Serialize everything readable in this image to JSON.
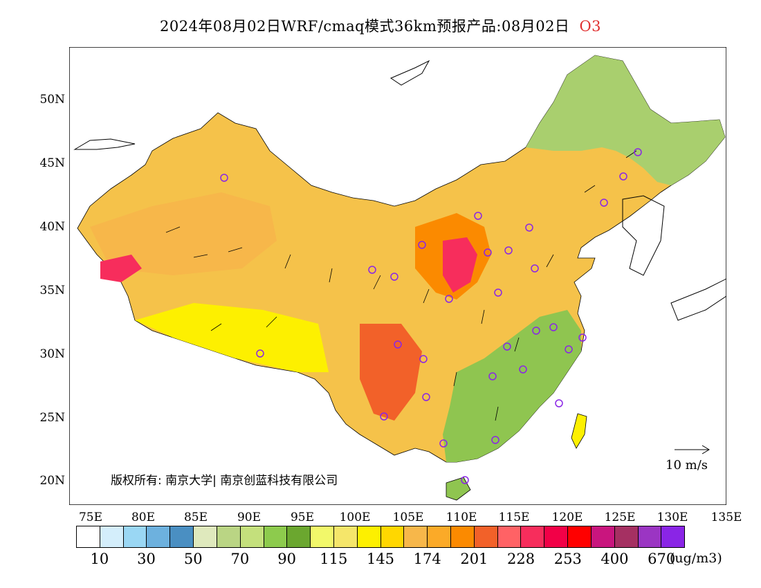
{
  "title": {
    "text": "2024年08月02日WRF/cmaq模式36km预报产品:08月02日",
    "species": "O3"
  },
  "map": {
    "lat_labels": [
      "50N",
      "45N",
      "40N",
      "35N",
      "30N",
      "25N",
      "20N"
    ],
    "lon_labels": [
      "75E",
      "80E",
      "85E",
      "90E",
      "95E",
      "100E",
      "105E",
      "110E",
      "115E",
      "120E",
      "125E",
      "130E",
      "135E"
    ],
    "copyright": "版权所有: 南京大学| 南京创蓝科技有限公司",
    "wind_reference": "10 m/s"
  },
  "colorbar": {
    "colors": [
      "#ffffff",
      "#d4eefb",
      "#9ad7f4",
      "#6db1de",
      "#4a8fc2",
      "#dfe9bd",
      "#bad584",
      "#c4e07c",
      "#8dcb4d",
      "#6ba72f",
      "#f2f86a",
      "#f5e66a",
      "#fdf000",
      "#ffd700",
      "#f7b74a",
      "#fbaa28",
      "#fb8a00",
      "#f26129",
      "#ff6265",
      "#f72d5c",
      "#f20047",
      "#ff0000",
      "#c9157e",
      "#a53062",
      "#9b35c3",
      "#8a25e6"
    ],
    "labels": [
      "10",
      "30",
      "50",
      "70",
      "90",
      "115",
      "145",
      "174",
      "201",
      "228",
      "253",
      "400",
      "670"
    ],
    "unit": "(ug/m3)"
  }
}
